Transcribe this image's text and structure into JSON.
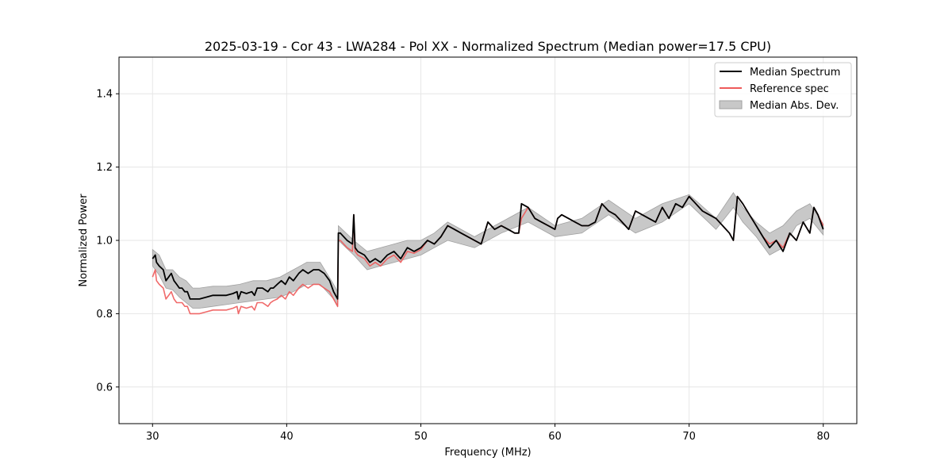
{
  "chart_data": {
    "type": "line",
    "title": "2025-03-19 - Cor 43 - LWA284 - Pol XX - Normalized Spectrum (Median power=17.5 CPU)",
    "xlabel": "Frequency (MHz)",
    "ylabel": "Normalized Power",
    "xlim": [
      27.5,
      82.5
    ],
    "ylim": [
      0.5,
      1.5
    ],
    "xticks": [
      30,
      40,
      50,
      60,
      70,
      80
    ],
    "yticks": [
      0.6,
      0.8,
      1.0,
      1.2,
      1.4
    ],
    "xtick_labels": [
      "30",
      "40",
      "50",
      "60",
      "70",
      "80"
    ],
    "ytick_labels": [
      "0.6",
      "0.8",
      "1.0",
      "1.2",
      "1.4"
    ],
    "grid": true,
    "legend_position": "top-right",
    "legend": [
      "Median Spectrum",
      "Reference spec",
      "Median Abs. Dev."
    ],
    "colors": {
      "median": "#000000",
      "reference": "#ee5a5a",
      "mad_fill": "#c8c8c8",
      "mad_edge": "#a0a0a0"
    },
    "series": [
      {
        "name": "Median Spectrum",
        "x": [
          30.0,
          30.2,
          30.3,
          30.5,
          30.8,
          31.0,
          31.2,
          31.4,
          31.6,
          31.8,
          32.0,
          32.2,
          32.4,
          32.6,
          32.8,
          33.0,
          33.2,
          33.5,
          34.0,
          34.5,
          35.0,
          35.5,
          36.0,
          36.3,
          36.4,
          36.6,
          37.0,
          37.4,
          37.6,
          37.8,
          38.2,
          38.6,
          38.8,
          39.0,
          39.3,
          39.6,
          39.9,
          40.2,
          40.5,
          40.9,
          41.2,
          41.6,
          42.0,
          42.4,
          42.8,
          43.2,
          43.5,
          43.8,
          43.85,
          44.0,
          44.5,
          44.9,
          45.0,
          45.1,
          45.3,
          45.8,
          46.2,
          46.6,
          47.0,
          47.5,
          48.0,
          48.5,
          49.0,
          49.5,
          50.0,
          50.5,
          51.0,
          51.5,
          52.0,
          52.5,
          53.0,
          54.0,
          54.5,
          55.0,
          55.5,
          56.0,
          56.5,
          57.0,
          57.3,
          57.5,
          58.0,
          58.5,
          59.0,
          59.5,
          60.0,
          60.2,
          60.5,
          61.0,
          61.5,
          62.0,
          62.5,
          63.0,
          63.5,
          64.0,
          64.5,
          65.0,
          65.5,
          66.0,
          66.5,
          67.0,
          67.5,
          68.0,
          68.5,
          69.0,
          69.5,
          70.0,
          70.5,
          71.0,
          71.5,
          72.0,
          72.5,
          73.0,
          73.3,
          73.6,
          74.0,
          74.5,
          75.0,
          75.5,
          76.0,
          76.5,
          77.0,
          77.5,
          78.0,
          78.5,
          79.0,
          79.3,
          79.6,
          80.0
        ],
        "values": [
          0.95,
          0.96,
          0.94,
          0.93,
          0.92,
          0.89,
          0.9,
          0.91,
          0.89,
          0.88,
          0.87,
          0.87,
          0.86,
          0.86,
          0.84,
          0.84,
          0.84,
          0.84,
          0.845,
          0.85,
          0.85,
          0.85,
          0.855,
          0.86,
          0.84,
          0.86,
          0.855,
          0.86,
          0.85,
          0.87,
          0.87,
          0.86,
          0.87,
          0.87,
          0.88,
          0.89,
          0.88,
          0.9,
          0.89,
          0.91,
          0.92,
          0.91,
          0.92,
          0.92,
          0.91,
          0.89,
          0.86,
          0.84,
          1.02,
          1.02,
          1.0,
          0.99,
          1.07,
          0.98,
          0.97,
          0.96,
          0.94,
          0.95,
          0.94,
          0.96,
          0.97,
          0.95,
          0.98,
          0.97,
          0.98,
          1.0,
          0.99,
          1.01,
          1.04,
          1.03,
          1.02,
          1.0,
          0.99,
          1.05,
          1.03,
          1.04,
          1.03,
          1.02,
          1.02,
          1.1,
          1.09,
          1.06,
          1.05,
          1.04,
          1.03,
          1.06,
          1.07,
          1.06,
          1.05,
          1.04,
          1.04,
          1.05,
          1.1,
          1.08,
          1.07,
          1.05,
          1.03,
          1.08,
          1.07,
          1.06,
          1.05,
          1.09,
          1.06,
          1.1,
          1.09,
          1.12,
          1.1,
          1.08,
          1.07,
          1.06,
          1.04,
          1.02,
          1.0,
          1.12,
          1.1,
          1.07,
          1.04,
          1.01,
          0.98,
          1.0,
          0.97,
          1.02,
          1.0,
          1.05,
          1.02,
          1.09,
          1.07,
          1.03
        ],
        "color": "#000000"
      },
      {
        "name": "Reference spec",
        "x": [
          30.0,
          30.2,
          30.3,
          30.5,
          30.8,
          31.0,
          31.2,
          31.4,
          31.6,
          31.8,
          32.0,
          32.2,
          32.4,
          32.6,
          32.8,
          33.0,
          33.2,
          33.5,
          34.0,
          34.5,
          35.0,
          35.5,
          36.0,
          36.3,
          36.4,
          36.6,
          37.0,
          37.4,
          37.6,
          37.8,
          38.2,
          38.6,
          38.8,
          39.0,
          39.3,
          39.6,
          39.9,
          40.2,
          40.5,
          40.9,
          41.2,
          41.6,
          42.0,
          42.4,
          42.8,
          43.2,
          43.5,
          43.8,
          43.85,
          44.0,
          44.5,
          44.9,
          45.0,
          45.1,
          45.3,
          45.8,
          46.2,
          46.6,
          47.0,
          47.5,
          48.0,
          48.5,
          49.0,
          49.5,
          50.0,
          50.5,
          51.0,
          51.5,
          52.0,
          52.5,
          53.0,
          54.0,
          54.5,
          55.0,
          55.5,
          56.0,
          56.5,
          57.0,
          57.3,
          57.5,
          58.0,
          58.5,
          59.0,
          59.5,
          60.0,
          60.2,
          60.5,
          61.0,
          61.5,
          62.0,
          62.5,
          63.0,
          63.5,
          64.0,
          64.5,
          65.0,
          65.5,
          66.0,
          66.5,
          67.0,
          67.5,
          68.0,
          68.5,
          69.0,
          69.5,
          70.0,
          70.5,
          71.0,
          71.5,
          72.0,
          72.5,
          73.0,
          73.3,
          73.6,
          74.0,
          74.5,
          75.0,
          75.5,
          76.0,
          76.5,
          77.0,
          77.5,
          78.0,
          78.5,
          79.0,
          79.3,
          79.6,
          80.0
        ],
        "values": [
          0.9,
          0.92,
          0.89,
          0.88,
          0.87,
          0.84,
          0.85,
          0.86,
          0.84,
          0.83,
          0.83,
          0.83,
          0.82,
          0.82,
          0.8,
          0.8,
          0.8,
          0.8,
          0.805,
          0.81,
          0.81,
          0.81,
          0.815,
          0.82,
          0.8,
          0.82,
          0.815,
          0.82,
          0.81,
          0.83,
          0.83,
          0.82,
          0.83,
          0.835,
          0.84,
          0.85,
          0.84,
          0.86,
          0.85,
          0.87,
          0.88,
          0.87,
          0.88,
          0.88,
          0.87,
          0.86,
          0.84,
          0.82,
          1.0,
          1.0,
          0.98,
          0.97,
          1.07,
          0.97,
          0.96,
          0.95,
          0.93,
          0.94,
          0.93,
          0.95,
          0.96,
          0.94,
          0.97,
          0.965,
          0.975,
          1.0,
          0.99,
          1.01,
          1.04,
          1.03,
          1.02,
          1.0,
          0.99,
          1.05,
          1.03,
          1.04,
          1.03,
          1.02,
          1.02,
          1.06,
          1.09,
          1.06,
          1.05,
          1.04,
          1.03,
          1.06,
          1.07,
          1.06,
          1.05,
          1.04,
          1.04,
          1.05,
          1.1,
          1.08,
          1.07,
          1.05,
          1.03,
          1.08,
          1.07,
          1.06,
          1.05,
          1.09,
          1.06,
          1.1,
          1.09,
          1.12,
          1.1,
          1.08,
          1.07,
          1.06,
          1.04,
          1.02,
          1.0,
          1.12,
          1.1,
          1.07,
          1.04,
          1.01,
          0.99,
          1.0,
          0.98,
          1.02,
          1.0,
          1.05,
          1.02,
          1.09,
          1.07,
          1.04
        ],
        "color": "#ee5a5a"
      }
    ],
    "mad_band": {
      "name": "Median Abs. Dev.",
      "x": [
        30.0,
        30.5,
        31.0,
        31.5,
        32.0,
        32.5,
        33.0,
        33.5,
        34.5,
        35.5,
        36.5,
        37.5,
        38.5,
        39.5,
        40.5,
        41.5,
        42.5,
        43.5,
        43.8,
        43.85,
        45.0,
        46.0,
        47.0,
        48.0,
        49.0,
        50.0,
        51.0,
        52.0,
        54.0,
        56.0,
        58.0,
        60.0,
        62.0,
        64.0,
        66.0,
        68.0,
        70.0,
        72.0,
        73.3,
        74.0,
        75.0,
        76.0,
        77.0,
        78.0,
        79.0,
        80.0
      ],
      "upper": [
        0.975,
        0.96,
        0.92,
        0.92,
        0.9,
        0.89,
        0.87,
        0.87,
        0.875,
        0.875,
        0.88,
        0.89,
        0.89,
        0.9,
        0.92,
        0.94,
        0.94,
        0.88,
        0.86,
        1.04,
        1.0,
        0.97,
        0.98,
        0.99,
        1.0,
        1.0,
        1.02,
        1.05,
        1.01,
        1.05,
        1.09,
        1.04,
        1.06,
        1.11,
        1.06,
        1.1,
        1.125,
        1.06,
        1.13,
        1.09,
        1.05,
        1.02,
        1.04,
        1.08,
        1.1,
        1.045
      ],
      "lower": [
        0.93,
        0.905,
        0.87,
        0.865,
        0.845,
        0.83,
        0.815,
        0.815,
        0.82,
        0.825,
        0.83,
        0.835,
        0.84,
        0.845,
        0.86,
        0.88,
        0.88,
        0.84,
        0.82,
        1.0,
        0.96,
        0.92,
        0.93,
        0.94,
        0.95,
        0.96,
        0.98,
        1.0,
        0.98,
        1.02,
        1.05,
        1.01,
        1.02,
        1.07,
        1.02,
        1.05,
        1.1,
        1.03,
        1.09,
        1.05,
        1.01,
        0.96,
        0.98,
        1.04,
        1.06,
        1.015
      ],
      "color": "#c8c8c8"
    }
  }
}
